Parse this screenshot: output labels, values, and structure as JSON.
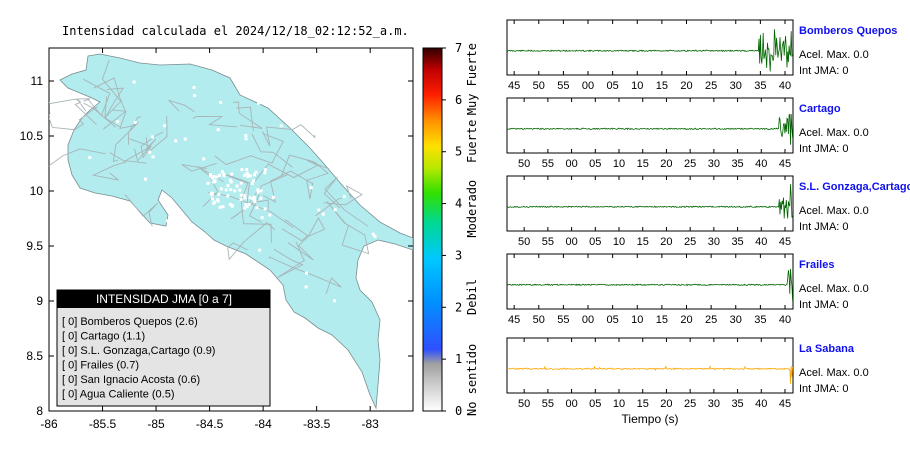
{
  "map": {
    "title": "Intensidad calculada el 2024/12/18_02:12:52_a.m.",
    "lon_ticks": [
      "-86",
      "-85.5",
      "-85",
      "-84.5",
      "-84",
      "-83.5",
      "-83"
    ],
    "lat_ticks": [
      "11",
      "10.5",
      "10",
      "9.5",
      "9",
      "8.5",
      "8"
    ],
    "xlim": [
      -86,
      -82.6
    ],
    "ylim": [
      8,
      11.3
    ],
    "land_color": "#b2ecef",
    "legend": {
      "title": "INTENSIDAD JMA [0 a 7]",
      "rows": [
        "[ 0]  Bomberos Quepos (2.6)",
        "[ 0]  Cartago (1.1)",
        "[ 0]  S.L. Gonzaga,Cartago (0.9)",
        "[ 0]  Frailes (0.7)",
        "[ 0]  San Ignacio Acosta (0.6)",
        "[ 0]  Agua Caliente (0.5)"
      ]
    }
  },
  "colorbar": {
    "ticks": [
      "0",
      "1",
      "2",
      "3",
      "4",
      "5",
      "6",
      "7"
    ],
    "categories": [
      "No sentido",
      "Debil",
      "Moderado",
      "Fuerte",
      "Muy Fuerte"
    ],
    "range": [
      0,
      7
    ]
  },
  "chart_data": [
    {
      "type": "line",
      "station": "Bomberos Quepos",
      "x_ticks": [
        "45",
        "50",
        "55",
        "00",
        "05",
        "10",
        "15",
        "20",
        "25",
        "30",
        "35",
        "40"
      ],
      "accel_label": "Acel. Max. 0.0",
      "int_label": "Int JMA: 0",
      "color": "#006400",
      "burst_start_fraction": 0.88
    },
    {
      "type": "line",
      "station": "Cartago",
      "x_ticks": [
        "50",
        "55",
        "00",
        "05",
        "10",
        "15",
        "20",
        "25",
        "30",
        "35",
        "40",
        "45"
      ],
      "accel_label": "Acel. Max. 0.0",
      "int_label": "Int JMA: 0",
      "color": "#006400",
      "burst_start_fraction": 0.95
    },
    {
      "type": "line",
      "station": "S.L. Gonzaga,Cartago",
      "x_ticks": [
        "50",
        "55",
        "00",
        "05",
        "10",
        "15",
        "20",
        "25",
        "30",
        "35",
        "40",
        "45"
      ],
      "accel_label": "Acel. Max. 0.0",
      "int_label": "Int JMA: 0",
      "color": "#006400",
      "burst_start_fraction": 0.95
    },
    {
      "type": "line",
      "station": "Frailes",
      "x_ticks": [
        "45",
        "50",
        "55",
        "00",
        "05",
        "10",
        "15",
        "20",
        "25",
        "30",
        "35",
        "40"
      ],
      "accel_label": "Acel. Max. 0.0",
      "int_label": "Int JMA: 0",
      "color": "#006400",
      "burst_start_fraction": 0.98
    },
    {
      "type": "line",
      "station": "La Sabana",
      "x_ticks": [
        "50",
        "55",
        "00",
        "05",
        "10",
        "15",
        "20",
        "25",
        "30",
        "35",
        "40",
        "45"
      ],
      "accel_label": "Acel. Max. 0.0",
      "int_label": "Int JMA: 0",
      "color": "#ffa500",
      "burst_start_fraction": 0.99,
      "xlabel": "Tiempo (s)"
    }
  ]
}
